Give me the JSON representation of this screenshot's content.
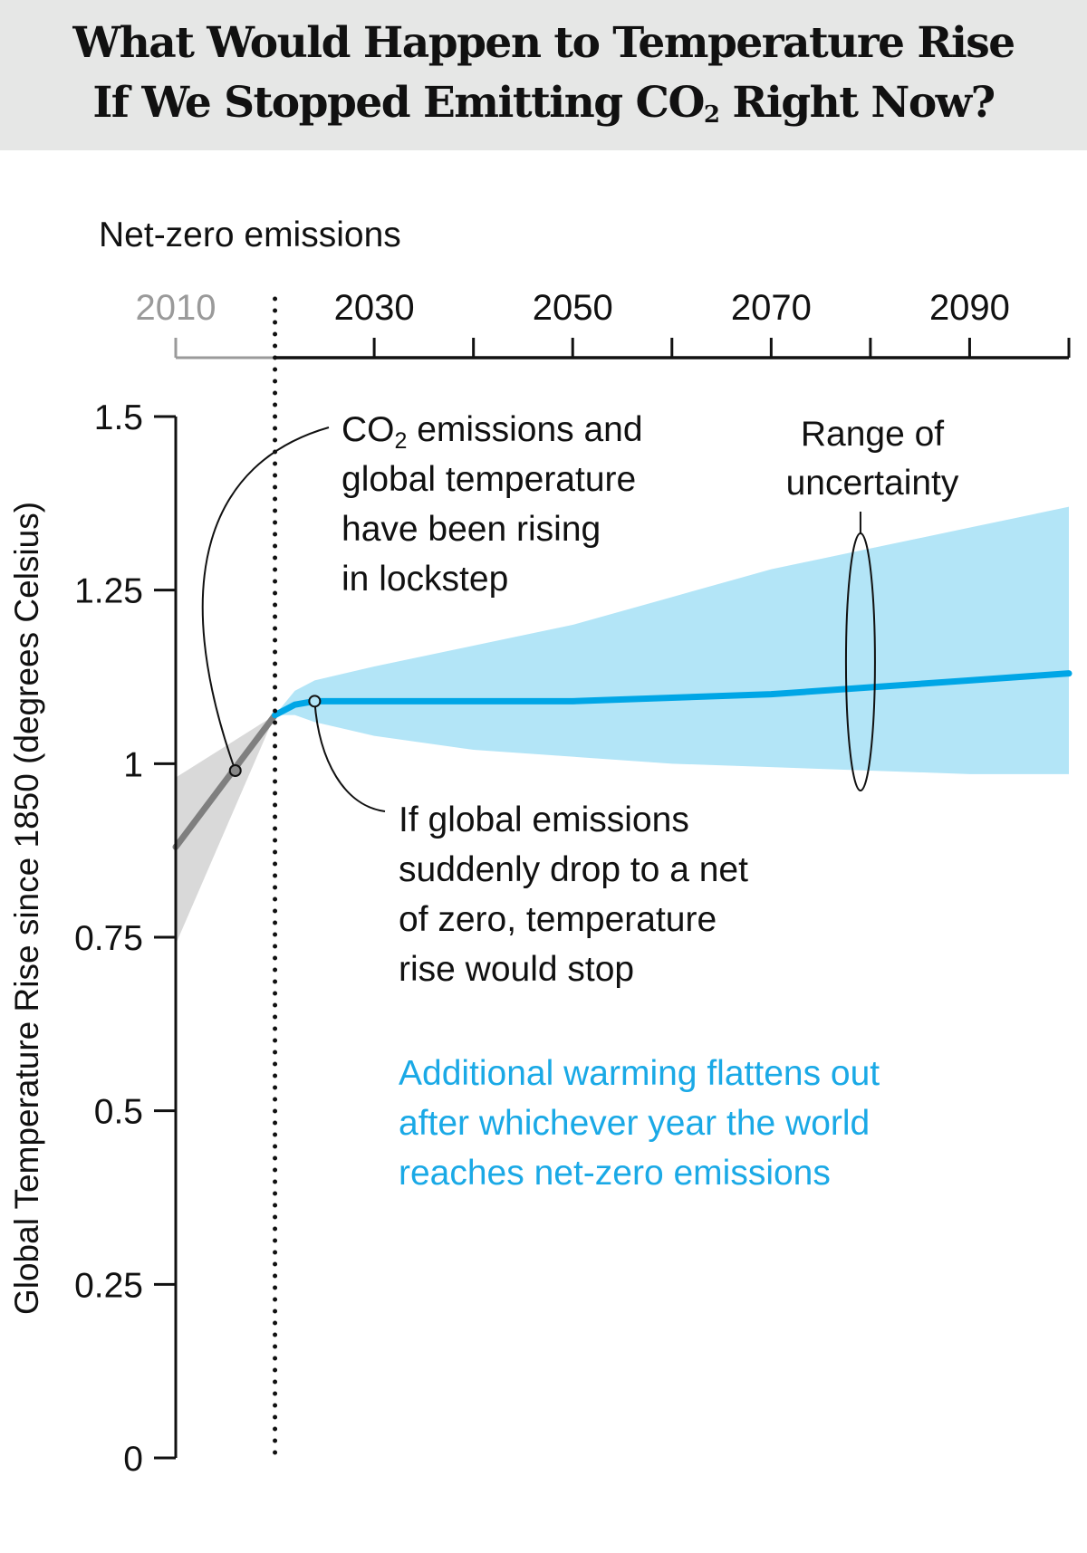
{
  "chart_data": {
    "type": "line",
    "title_line1": "What Would Happen to Temperature Rise",
    "title_line2_pre": "If We Stopped Emitting CO",
    "title_line2_sub": "2",
    "title_line2_post": " Right Now?",
    "ylabel": "Global Temperature Rise since 1850 (degrees Celsius)",
    "xlim": [
      2010,
      2100
    ],
    "ylim": [
      0,
      1.5
    ],
    "x_ticks": [
      2010,
      2020,
      2030,
      2040,
      2050,
      2060,
      2070,
      2080,
      2090,
      2100
    ],
    "x_tick_labels": [
      {
        "year": 2010,
        "label": "2010",
        "color": "#9a9a9a"
      },
      {
        "year": 2030,
        "label": "2030",
        "color": "#111111"
      },
      {
        "year": 2050,
        "label": "2050",
        "color": "#111111"
      },
      {
        "year": 2070,
        "label": "2070",
        "color": "#111111"
      },
      {
        "year": 2090,
        "label": "2090",
        "color": "#111111"
      }
    ],
    "y_ticks": [
      {
        "value": 0,
        "label": "0"
      },
      {
        "value": 0.25,
        "label": "0.25"
      },
      {
        "value": 0.5,
        "label": "0.5"
      },
      {
        "value": 0.75,
        "label": "0.75"
      },
      {
        "value": 1,
        "label": "1"
      },
      {
        "value": 1.25,
        "label": "1.25"
      },
      {
        "value": 1.5,
        "label": "1.5"
      }
    ],
    "net_zero_year": 2020,
    "net_zero_label": "Net-zero emissions",
    "historical": {
      "color": "#7f7f7f",
      "band_color": "#d9d9d9",
      "x": [
        2010,
        2020
      ],
      "y": [
        0.88,
        1.07
      ],
      "lower": [
        0.74,
        1.07
      ],
      "upper": [
        0.98,
        1.07
      ]
    },
    "projection": {
      "color": "#00a6e6",
      "band_color": "#b3e5f7",
      "x": [
        2020,
        2022,
        2024,
        2030,
        2040,
        2050,
        2060,
        2070,
        2080,
        2090,
        2100
      ],
      "y": [
        1.07,
        1.085,
        1.09,
        1.09,
        1.09,
        1.09,
        1.095,
        1.1,
        1.11,
        1.12,
        1.13
      ],
      "upper": [
        1.07,
        1.105,
        1.12,
        1.14,
        1.17,
        1.2,
        1.24,
        1.28,
        1.31,
        1.34,
        1.37
      ],
      "lower": [
        1.07,
        1.07,
        1.06,
        1.04,
        1.02,
        1.01,
        1.0,
        0.995,
        0.99,
        0.985,
        0.985
      ]
    },
    "annotations": {
      "lockstep": {
        "lines_pre": "CO",
        "sub": "2",
        "line1_post": " emissions and",
        "lines": [
          "global temperature",
          "have been rising",
          "in lockstep"
        ],
        "point": [
          2016,
          0.99
        ]
      },
      "uncertainty": {
        "lines": [
          "Range of",
          "uncertainty"
        ],
        "year": 2079
      },
      "stop": {
        "lines": [
          "If global emissions",
          "suddenly drop to a net",
          "of zero, temperature",
          "rise would stop"
        ],
        "point": [
          2024,
          1.09
        ]
      },
      "flatten": {
        "color": "#1aa9e6",
        "lines": [
          "Additional warming flattens out",
          "after whichever year the world",
          "reaches net-zero emissions"
        ]
      }
    }
  }
}
